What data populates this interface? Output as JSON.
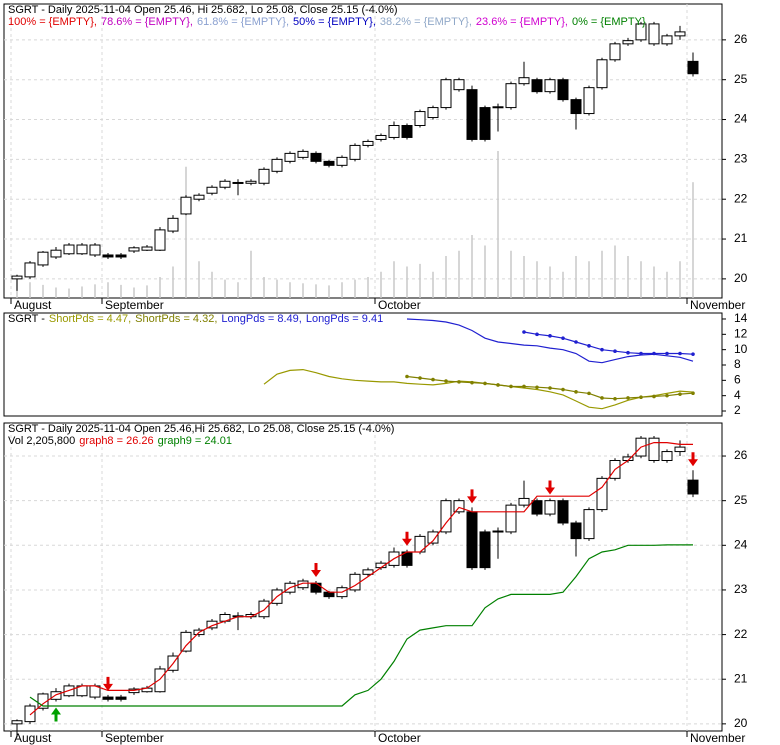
{
  "chart_data": [
    {
      "type": "candlestick",
      "title": "SGRT - Daily 2025-11-04 Open 25.46, Hi 25.682, Lo 25.08, Close 25.15 (-4.0%)",
      "levels": [
        {
          "label": "100% = {EMPTY},",
          "color": "#e00000"
        },
        {
          "label": "78.6% = {EMPTY},",
          "color": "#c000c0"
        },
        {
          "label": "61.8% = {EMPTY},",
          "color": "#8aa0d0"
        },
        {
          "label": "50% = {EMPTY},",
          "color": "#0000c0"
        },
        {
          "label": "38.2% = {EMPTY},",
          "color": "#90a8c8"
        },
        {
          "label": "23.6% = {EMPTY},",
          "color": "#d000d0"
        },
        {
          "label": "0% = {EMPTY}",
          "color": "#008000"
        }
      ],
      "categories": [
        "August",
        null,
        null,
        null,
        null,
        null,
        null,
        "September",
        null,
        null,
        null,
        null,
        null,
        null,
        null,
        null,
        null,
        null,
        null,
        null,
        null,
        null,
        null,
        null,
        null,
        null,
        null,
        null,
        "October",
        null,
        null,
        null,
        null,
        null,
        null,
        null,
        null,
        null,
        null,
        null,
        null,
        null,
        null,
        null,
        null,
        null,
        null,
        null,
        null,
        null,
        null,
        null,
        "November"
      ],
      "open": [
        20.0,
        20.05,
        20.35,
        20.55,
        20.63,
        20.63,
        20.6,
        20.6,
        20.6,
        20.7,
        20.72,
        20.72,
        21.2,
        21.63,
        22.0,
        22.15,
        22.3,
        22.4,
        22.4,
        22.4,
        22.7,
        22.95,
        23.05,
        23.15,
        22.95,
        22.85,
        23.0,
        23.35,
        23.5,
        23.55,
        23.85,
        23.85,
        24.05,
        24.3,
        24.75,
        24.75,
        24.3,
        24.3,
        24.3,
        24.9,
        25.0,
        24.7,
        25.0,
        24.5,
        24.15,
        24.8,
        25.5,
        25.9,
        26.0,
        25.9,
        25.9,
        26.1,
        25.46
      ],
      "high": [
        20.1,
        20.45,
        20.7,
        20.8,
        20.9,
        20.9,
        20.9,
        20.65,
        20.65,
        20.82,
        20.85,
        21.3,
        21.6,
        22.1,
        22.15,
        22.35,
        22.5,
        22.5,
        22.5,
        22.8,
        23.05,
        23.2,
        23.25,
        23.2,
        22.98,
        23.1,
        23.4,
        23.5,
        23.65,
        23.95,
        23.9,
        24.25,
        24.35,
        25.05,
        25.05,
        24.85,
        24.35,
        24.4,
        24.95,
        25.45,
        25.05,
        25.05,
        25.05,
        24.55,
        24.85,
        25.55,
        25.95,
        26.05,
        26.45,
        26.45,
        26.15,
        26.35,
        25.682
      ],
      "low": [
        19.7,
        20.0,
        20.3,
        20.5,
        20.6,
        20.6,
        20.55,
        20.5,
        20.5,
        20.65,
        20.7,
        20.7,
        21.15,
        21.6,
        21.95,
        22.1,
        22.25,
        22.1,
        22.35,
        22.35,
        22.65,
        22.9,
        23.0,
        22.9,
        22.8,
        22.8,
        22.95,
        23.3,
        23.45,
        23.5,
        23.5,
        23.8,
        24.0,
        24.25,
        24.7,
        23.45,
        23.45,
        23.7,
        24.25,
        24.85,
        24.65,
        24.65,
        24.45,
        23.75,
        24.1,
        24.75,
        25.45,
        25.85,
        25.95,
        25.85,
        25.85,
        26.0,
        25.08
      ],
      "close": [
        20.07,
        20.4,
        20.67,
        20.72,
        20.85,
        20.85,
        20.85,
        20.55,
        20.55,
        20.78,
        20.8,
        21.23,
        21.52,
        22.05,
        22.1,
        22.3,
        22.45,
        22.42,
        22.45,
        22.75,
        23.0,
        23.15,
        23.2,
        22.95,
        22.85,
        23.05,
        23.35,
        23.45,
        23.6,
        23.85,
        23.55,
        24.2,
        24.3,
        25.0,
        25.0,
        23.5,
        23.5,
        24.32,
        24.9,
        25.05,
        24.7,
        25.0,
        24.5,
        24.15,
        24.8,
        25.5,
        25.9,
        25.98,
        26.4,
        26.4,
        26.1,
        26.2,
        25.15
      ],
      "volume": [
        450000,
        300000,
        250000,
        200000,
        180000,
        220000,
        260000,
        300000,
        250000,
        200000,
        240000,
        400000,
        600000,
        2500000,
        700000,
        500000,
        350000,
        300000,
        900000,
        400000,
        350000,
        300000,
        280000,
        260000,
        240000,
        300000,
        350000,
        400000,
        500000,
        700000,
        600000,
        650000,
        500000,
        800000,
        900000,
        1200000,
        1000000,
        2800000,
        900000,
        800000,
        700000,
        600000,
        500000,
        800000,
        700000,
        900000,
        1000000,
        800000,
        700000,
        600000,
        500000,
        700000,
        2205800
      ],
      "volume_color": "#c8c8c8",
      "ylim": [
        19.52,
        26.9
      ],
      "yticks": [
        20,
        21,
        22,
        23,
        24,
        25,
        26
      ],
      "grid": true
    },
    {
      "type": "line",
      "title": "SGRT -",
      "series": [
        {
          "name": "ShortPds = 4.47,",
          "color": "#999900",
          "markers": false,
          "values": [
            null,
            null,
            null,
            null,
            null,
            null,
            null,
            null,
            null,
            null,
            null,
            null,
            null,
            null,
            null,
            null,
            null,
            null,
            null,
            5.5,
            6.8,
            7.3,
            7.4,
            7.0,
            6.5,
            6.2,
            6.0,
            5.9,
            5.8,
            5.8,
            5.6,
            5.5,
            5.4,
            5.6,
            5.9,
            5.8,
            5.6,
            5.4,
            5.2,
            5.0,
            4.8,
            4.5,
            4.1,
            3.3,
            2.5,
            2.3,
            2.8,
            3.4,
            3.8,
            4.0,
            4.3,
            4.6,
            4.47
          ]
        },
        {
          "name": "ShortPds = 4.32,",
          "color": "#808000",
          "markers": true,
          "values": [
            null,
            null,
            null,
            null,
            null,
            null,
            null,
            null,
            null,
            null,
            null,
            null,
            null,
            null,
            null,
            null,
            null,
            null,
            null,
            null,
            null,
            null,
            null,
            null,
            null,
            null,
            null,
            null,
            null,
            null,
            6.5,
            6.3,
            6.1,
            5.9,
            5.8,
            5.7,
            5.6,
            5.4,
            5.2,
            5.2,
            5.1,
            5.0,
            4.8,
            4.5,
            4.3,
            3.7,
            3.6,
            3.7,
            3.8,
            3.9,
            4.0,
            4.2,
            4.32
          ]
        },
        {
          "name": "LongPds = 8.49,",
          "color": "#2020d0",
          "markers": false,
          "values": [
            null,
            null,
            null,
            null,
            null,
            null,
            null,
            null,
            null,
            null,
            null,
            null,
            null,
            null,
            null,
            null,
            null,
            null,
            null,
            null,
            null,
            null,
            null,
            null,
            null,
            null,
            null,
            null,
            null,
            null,
            14.0,
            13.9,
            13.8,
            13.6,
            13.2,
            12.5,
            11.5,
            11.0,
            10.8,
            10.6,
            10.5,
            10.2,
            10.0,
            9.5,
            8.5,
            8.3,
            8.7,
            9.1,
            9.3,
            9.4,
            9.2,
            9.0,
            8.49
          ]
        },
        {
          "name": "LongPds = 9.41",
          "color": "#2020d0",
          "markers": true,
          "values": [
            null,
            null,
            null,
            null,
            null,
            null,
            null,
            null,
            null,
            null,
            null,
            null,
            null,
            null,
            null,
            null,
            null,
            null,
            null,
            null,
            null,
            null,
            null,
            null,
            null,
            null,
            null,
            null,
            null,
            null,
            null,
            null,
            null,
            null,
            null,
            null,
            null,
            null,
            null,
            12.3,
            12.0,
            11.8,
            11.5,
            11.0,
            10.5,
            10.0,
            9.8,
            9.6,
            9.5,
            9.5,
            9.5,
            9.5,
            9.41
          ]
        }
      ],
      "ylim": [
        1.35,
        14.78
      ],
      "yticks": [
        2,
        4,
        6,
        8,
        10,
        12,
        14
      ],
      "grid": false
    },
    {
      "type": "candlestick",
      "title": "SGRT - Daily 2025-11-04 Open 25.46,Hi 25.682, Lo 25.08, Close 25.15 (-4.0%)",
      "subtitle": "Vol 2,205,800",
      "categories": [
        "August",
        null,
        null,
        null,
        null,
        null,
        null,
        "September",
        null,
        null,
        null,
        null,
        null,
        null,
        null,
        null,
        null,
        null,
        null,
        null,
        null,
        null,
        null,
        null,
        null,
        null,
        null,
        null,
        "October",
        null,
        null,
        null,
        null,
        null,
        null,
        null,
        null,
        null,
        null,
        null,
        null,
        null,
        null,
        null,
        null,
        null,
        null,
        null,
        null,
        null,
        null,
        null,
        "November"
      ],
      "open": [
        20.0,
        20.05,
        20.35,
        20.55,
        20.63,
        20.63,
        20.6,
        20.6,
        20.6,
        20.7,
        20.72,
        20.72,
        21.2,
        21.63,
        22.0,
        22.15,
        22.3,
        22.4,
        22.4,
        22.4,
        22.7,
        22.95,
        23.05,
        23.15,
        22.95,
        22.85,
        23.0,
        23.35,
        23.5,
        23.55,
        23.85,
        23.85,
        24.05,
        24.3,
        24.75,
        24.75,
        24.3,
        24.3,
        24.3,
        24.9,
        25.0,
        24.7,
        25.0,
        24.5,
        24.15,
        24.8,
        25.5,
        25.9,
        26.0,
        25.9,
        25.9,
        26.1,
        25.46
      ],
      "high": [
        20.1,
        20.45,
        20.7,
        20.8,
        20.9,
        20.9,
        20.9,
        20.65,
        20.65,
        20.82,
        20.85,
        21.3,
        21.6,
        22.1,
        22.15,
        22.35,
        22.5,
        22.5,
        22.5,
        22.8,
        23.05,
        23.2,
        23.25,
        23.2,
        22.98,
        23.1,
        23.4,
        23.5,
        23.65,
        23.95,
        23.9,
        24.25,
        24.35,
        25.05,
        25.05,
        24.85,
        24.35,
        24.4,
        24.95,
        25.45,
        25.05,
        25.05,
        25.05,
        24.55,
        24.85,
        25.55,
        25.95,
        26.05,
        26.45,
        26.45,
        26.15,
        26.35,
        25.682
      ],
      "low": [
        19.7,
        20.0,
        20.3,
        20.5,
        20.6,
        20.6,
        20.55,
        20.5,
        20.5,
        20.65,
        20.7,
        20.7,
        21.15,
        21.6,
        21.95,
        22.1,
        22.25,
        22.1,
        22.35,
        22.35,
        22.65,
        22.9,
        23.0,
        22.9,
        22.8,
        22.8,
        22.95,
        23.3,
        23.45,
        23.5,
        23.5,
        23.8,
        24.0,
        24.25,
        24.7,
        23.45,
        23.45,
        23.7,
        24.25,
        24.85,
        24.65,
        24.65,
        24.45,
        23.75,
        24.1,
        24.75,
        25.45,
        25.85,
        25.95,
        25.85,
        25.85,
        26.0,
        25.08
      ],
      "close": [
        20.07,
        20.4,
        20.67,
        20.72,
        20.85,
        20.85,
        20.85,
        20.55,
        20.55,
        20.78,
        20.8,
        21.23,
        21.52,
        22.05,
        22.1,
        22.3,
        22.45,
        22.42,
        22.45,
        22.75,
        23.0,
        23.15,
        23.2,
        22.95,
        22.85,
        23.05,
        23.35,
        23.45,
        23.6,
        23.85,
        23.55,
        24.2,
        24.3,
        25.0,
        25.0,
        23.5,
        23.5,
        24.32,
        24.9,
        25.05,
        24.7,
        25.0,
        24.5,
        24.15,
        24.8,
        25.5,
        25.9,
        25.98,
        26.4,
        26.4,
        26.1,
        26.2,
        25.15
      ],
      "series": [
        {
          "name": "graph8 = 26.26",
          "color": "#e00000",
          "markers": false,
          "values": [
            null,
            20.2,
            20.45,
            20.65,
            20.75,
            20.85,
            20.85,
            20.75,
            20.75,
            20.75,
            20.8,
            21.0,
            21.35,
            21.75,
            22.05,
            22.2,
            22.3,
            22.4,
            22.4,
            22.55,
            22.85,
            23.05,
            23.15,
            23.15,
            22.95,
            22.95,
            23.1,
            23.3,
            23.5,
            23.7,
            23.85,
            23.85,
            24.1,
            24.5,
            24.85,
            24.75,
            24.75,
            24.75,
            24.75,
            24.75,
            25.1,
            25.1,
            25.1,
            25.1,
            25.1,
            25.3,
            25.7,
            25.9,
            26.2,
            26.3,
            26.3,
            26.26,
            26.26
          ]
        },
        {
          "name": "graph9 = 24.01",
          "color": "#008000",
          "markers": false,
          "values": [
            null,
            20.6,
            20.4,
            20.4,
            20.4,
            20.4,
            20.4,
            20.4,
            20.4,
            20.4,
            20.4,
            20.4,
            20.4,
            20.4,
            20.4,
            20.4,
            20.4,
            20.4,
            20.4,
            20.4,
            20.4,
            20.4,
            20.4,
            20.4,
            20.4,
            20.4,
            20.65,
            20.75,
            21.0,
            21.4,
            21.9,
            22.1,
            22.15,
            22.2,
            22.2,
            22.2,
            22.6,
            22.8,
            22.9,
            22.9,
            22.9,
            22.9,
            22.95,
            23.3,
            23.7,
            23.85,
            23.9,
            24.0,
            24.0,
            24.0,
            24.01,
            24.01,
            24.01
          ]
        }
      ],
      "sell_signals": [
        7,
        23,
        30,
        35,
        41,
        52
      ],
      "buy_signals": [
        3
      ],
      "ylim": [
        19.84,
        26.74
      ],
      "yticks": [
        20,
        21,
        22,
        23,
        24,
        25,
        26
      ],
      "grid": true
    }
  ]
}
